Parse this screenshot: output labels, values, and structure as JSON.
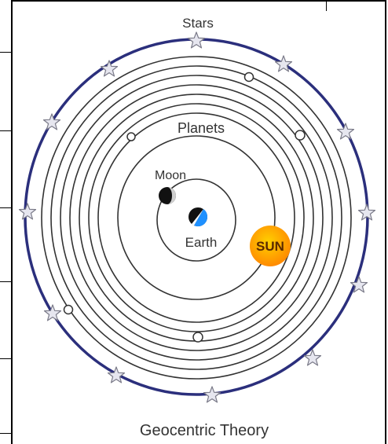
{
  "labels": {
    "stars": "Stars",
    "planets": "Planets",
    "moon": "Moon",
    "earth": "Earth",
    "sun": "SUN",
    "caption": "Geocentric Theory"
  },
  "colors": {
    "outer_ring": "#2b2f7c",
    "orbit": "#333333",
    "sun_core": "#ff8a00",
    "sun_glow": "#ffd000",
    "sun_text": "#5a2a00",
    "earth_blue": "#1e90ff",
    "star_fill": "#e6e6ef",
    "star_stroke": "#7a7a88"
  },
  "icons": {
    "star": "star-icon",
    "earth": "earth-icon",
    "moon": "moon-icon",
    "sun": "sun-icon",
    "planet": "planet-dot-icon"
  }
}
